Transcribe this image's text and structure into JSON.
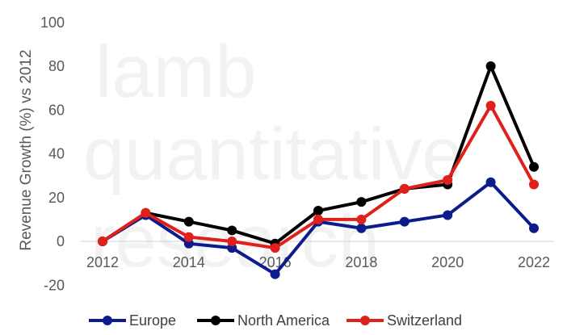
{
  "chart_data": {
    "type": "line",
    "title": "",
    "xlabel": "",
    "ylabel": "Revenue Growth (%) vs 2012",
    "x": [
      2012,
      2013,
      2014,
      2015,
      2016,
      2017,
      2018,
      2019,
      2020,
      2021,
      2022
    ],
    "x_tick_labels": [
      "2012",
      "2014",
      "2016",
      "2018",
      "2020",
      "2022"
    ],
    "y_tick_labels": [
      "-20",
      "0",
      "20",
      "40",
      "60",
      "80",
      "100"
    ],
    "ylim": [
      -20,
      100
    ],
    "grid": false,
    "legend_position": "bottom",
    "series": [
      {
        "name": "Europe",
        "color": "#0d1b8c",
        "values": [
          0,
          12,
          -1,
          -3,
          -15,
          9,
          6,
          9,
          12,
          27,
          6
        ]
      },
      {
        "name": "North America",
        "color": "#000000",
        "values": [
          0,
          13,
          9,
          5,
          -1,
          14,
          18,
          24,
          26,
          80,
          34
        ]
      },
      {
        "name": "Switzerland",
        "color": "#e0201b",
        "values": [
          0,
          13,
          2,
          0,
          -3,
          10,
          10,
          24,
          28,
          62,
          26
        ]
      }
    ]
  },
  "watermark": [
    "lamb",
    "quantitative",
    "research"
  ]
}
